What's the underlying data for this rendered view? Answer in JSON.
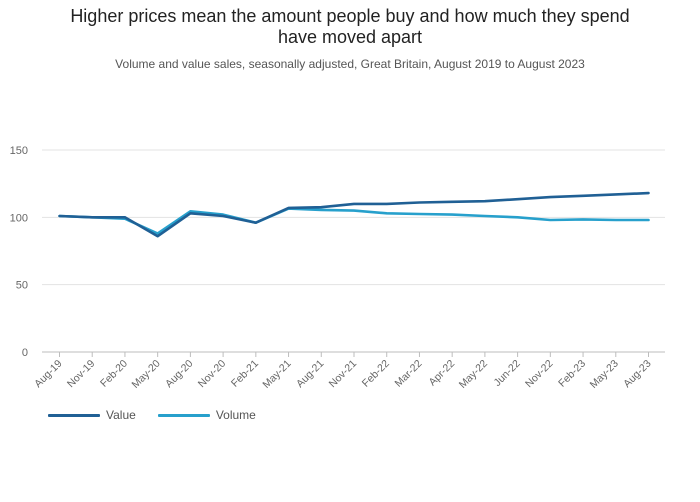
{
  "title_line1": "Higher prices mean the amount people buy and how much they spend",
  "title_line2": "have moved apart",
  "subtitle": "Volume and value sales, seasonally adjusted, Great Britain, August 2019 to August 2023",
  "chart_data": {
    "type": "line",
    "x_tick_labels": [
      "Aug-19",
      "Nov-19",
      "Feb-20",
      "May-20",
      "Aug-20",
      "Nov-20",
      "Feb-21",
      "May-21",
      "Aug-21",
      "Nov-21",
      "Feb-22",
      "Mar-22",
      "Apr-22",
      "May-22",
      "Jun-22",
      "Nov-22",
      "Feb-23",
      "May-23",
      "Aug-23"
    ],
    "y_ticks": [
      0,
      50,
      100,
      150
    ],
    "ylim": [
      0,
      150
    ],
    "grid": true,
    "legend_position": "bottom-left",
    "series": [
      {
        "name": "Value",
        "color": "#206095",
        "values": [
          101,
          100,
          100,
          86,
          103,
          101,
          96,
          107,
          107.5,
          110,
          110,
          111,
          111.5,
          112,
          113.5,
          115,
          116,
          117,
          118
        ]
      },
      {
        "name": "Volume",
        "color": "#27a0cc",
        "values": [
          101,
          100,
          99,
          88,
          104.5,
          102,
          96,
          106.5,
          105.5,
          105,
          103,
          102.5,
          102,
          101,
          100,
          98,
          98.5,
          98,
          98
        ]
      }
    ]
  }
}
